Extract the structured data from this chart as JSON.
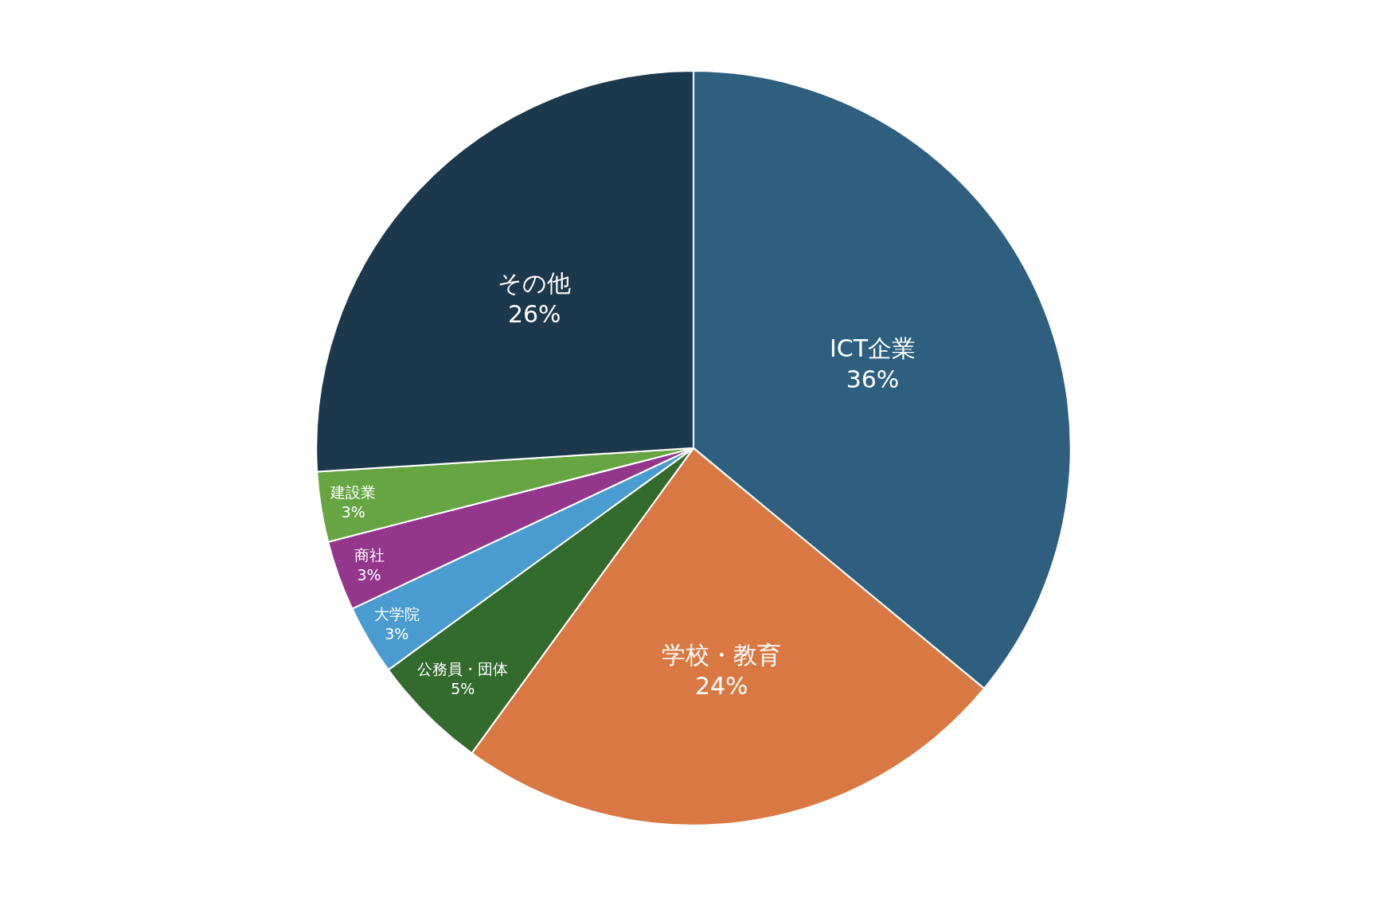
{
  "chart_data": {
    "type": "pie",
    "categories": [
      "ICT企業",
      "学校・教育",
      "公務員・団体",
      "大学院",
      "商社",
      "建設業",
      "その他"
    ],
    "values": [
      36,
      24,
      5,
      3,
      3,
      3,
      26
    ],
    "value_labels": [
      "36%",
      "24%",
      "5%",
      "3%",
      "3%",
      "3%",
      "26%"
    ],
    "colors": [
      "#2e5f7f",
      "#d97842",
      "#336a2e",
      "#4a9bd0",
      "#93368c",
      "#67a543",
      "#1c384d"
    ],
    "legend": false
  }
}
